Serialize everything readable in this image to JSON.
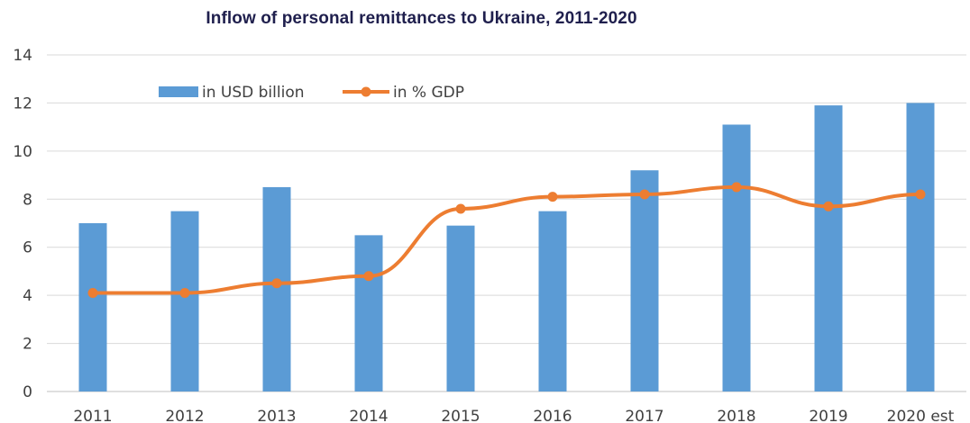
{
  "chart_data": {
    "type": "bar",
    "title": "Inflow of personal remittances to Ukraine, 2011-2020",
    "categories": [
      "2011",
      "2012",
      "2013",
      "2014",
      "2015",
      "2016",
      "2017",
      "2018",
      "2019",
      "2020 est"
    ],
    "series": [
      {
        "name": "in USD billion",
        "type": "bar",
        "color": "#5b9bd5",
        "values": [
          7.0,
          7.5,
          8.5,
          6.5,
          6.9,
          7.5,
          9.2,
          11.1,
          11.9,
          12.0
        ]
      },
      {
        "name": "in % GDP",
        "type": "line",
        "color": "#ed7d31",
        "values": [
          4.1,
          4.1,
          4.5,
          4.8,
          7.6,
          8.1,
          8.2,
          8.5,
          7.7,
          8.2
        ]
      }
    ],
    "ylim": [
      0,
      14
    ],
    "yticks": [
      0,
      2,
      4,
      6,
      8,
      10,
      12,
      14
    ],
    "xlabel": "",
    "ylabel": "",
    "grid": true,
    "legend_position": "top-left"
  }
}
